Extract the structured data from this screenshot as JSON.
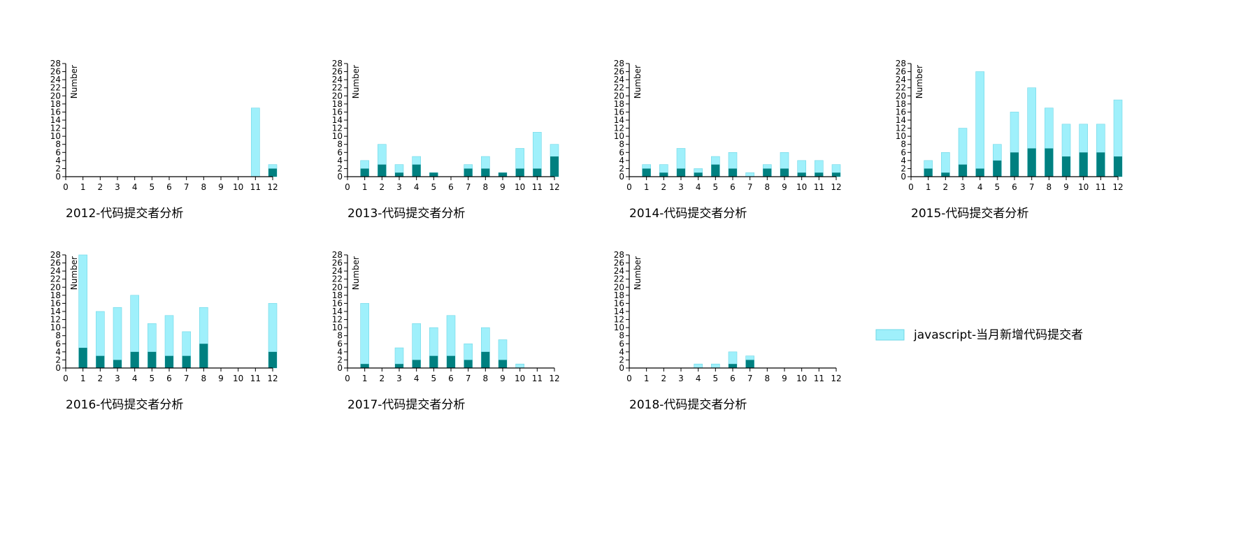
{
  "legend": {
    "label": "javascript-当月新增代码提交者",
    "color": "#9FF0FB"
  },
  "colors": {
    "total": "#9FF0FB",
    "total_stroke": "#6fd7e6",
    "part": "#008080"
  },
  "chart_data": [
    {
      "type": "bar",
      "title": "2012-代码提交者分析",
      "ylabel": "Number",
      "xlim": [
        0,
        12
      ],
      "ylim": [
        0,
        28
      ],
      "x": [
        1,
        2,
        3,
        4,
        5,
        6,
        7,
        8,
        9,
        10,
        11,
        12
      ],
      "series": [
        {
          "values": [
            0,
            0,
            0,
            0,
            0,
            0,
            0,
            0,
            0,
            0,
            17,
            3
          ]
        },
        {
          "values": [
            0,
            0,
            0,
            0,
            0,
            0,
            0,
            0,
            0,
            0,
            0,
            2
          ]
        }
      ]
    },
    {
      "type": "bar",
      "title": "2013-代码提交者分析",
      "ylabel": "Number",
      "xlim": [
        0,
        12
      ],
      "ylim": [
        0,
        28
      ],
      "x": [
        1,
        2,
        3,
        4,
        5,
        6,
        7,
        8,
        9,
        10,
        11,
        12
      ],
      "series": [
        {
          "values": [
            4,
            8,
            3,
            5,
            1,
            0,
            3,
            5,
            1,
            7,
            11,
            8
          ]
        },
        {
          "values": [
            2,
            3,
            1,
            3,
            1,
            0,
            2,
            2,
            1,
            2,
            2,
            5
          ]
        }
      ]
    },
    {
      "type": "bar",
      "title": "2014-代码提交者分析",
      "ylabel": "Number",
      "xlim": [
        0,
        12
      ],
      "ylim": [
        0,
        28
      ],
      "x": [
        1,
        2,
        3,
        4,
        5,
        6,
        7,
        8,
        9,
        10,
        11,
        12
      ],
      "series": [
        {
          "values": [
            3,
            3,
            7,
            2,
            5,
            6,
            1,
            3,
            6,
            4,
            4,
            3
          ]
        },
        {
          "values": [
            2,
            1,
            2,
            1,
            3,
            2,
            0,
            2,
            2,
            1,
            1,
            1
          ]
        }
      ]
    },
    {
      "type": "bar",
      "title": "2015-代码提交者分析",
      "ylabel": "Number",
      "xlim": [
        0,
        12
      ],
      "ylim": [
        0,
        28
      ],
      "x": [
        1,
        2,
        3,
        4,
        5,
        6,
        7,
        8,
        9,
        10,
        11,
        12
      ],
      "series": [
        {
          "values": [
            4,
            6,
            12,
            26,
            8,
            16,
            22,
            17,
            13,
            13,
            13,
            19
          ]
        },
        {
          "values": [
            2,
            1,
            3,
            2,
            4,
            6,
            7,
            7,
            5,
            6,
            6,
            5
          ]
        }
      ]
    },
    {
      "type": "bar",
      "title": "2016-代码提交者分析",
      "ylabel": "Number",
      "xlim": [
        0,
        12
      ],
      "ylim": [
        0,
        28
      ],
      "x": [
        1,
        2,
        3,
        4,
        5,
        6,
        7,
        8,
        9,
        10,
        11,
        12
      ],
      "series": [
        {
          "values": [
            28,
            14,
            15,
            18,
            11,
            13,
            9,
            15,
            0,
            0,
            0,
            16
          ]
        },
        {
          "values": [
            5,
            3,
            2,
            4,
            4,
            3,
            3,
            6,
            0,
            0,
            0,
            4
          ]
        }
      ]
    },
    {
      "type": "bar",
      "title": "2017-代码提交者分析",
      "ylabel": "Number",
      "xlim": [
        0,
        12
      ],
      "ylim": [
        0,
        28
      ],
      "x": [
        1,
        2,
        3,
        4,
        5,
        6,
        7,
        8,
        9,
        10,
        11,
        12
      ],
      "series": [
        {
          "values": [
            16,
            0,
            5,
            11,
            10,
            13,
            6,
            10,
            7,
            1,
            0,
            0
          ]
        },
        {
          "values": [
            1,
            0,
            1,
            2,
            3,
            3,
            2,
            4,
            2,
            0,
            0,
            0
          ]
        }
      ]
    },
    {
      "type": "bar",
      "title": "2018-代码提交者分析",
      "ylabel": "Number",
      "xlim": [
        0,
        12
      ],
      "ylim": [
        0,
        28
      ],
      "x": [
        1,
        2,
        3,
        4,
        5,
        6,
        7,
        8,
        9,
        10,
        11,
        12
      ],
      "series": [
        {
          "values": [
            0,
            0,
            0,
            1,
            1,
            4,
            3,
            0,
            0,
            0,
            0,
            0
          ]
        },
        {
          "values": [
            0,
            0,
            0,
            0,
            0,
            1,
            2,
            0,
            0,
            0,
            0,
            0
          ]
        }
      ]
    }
  ]
}
